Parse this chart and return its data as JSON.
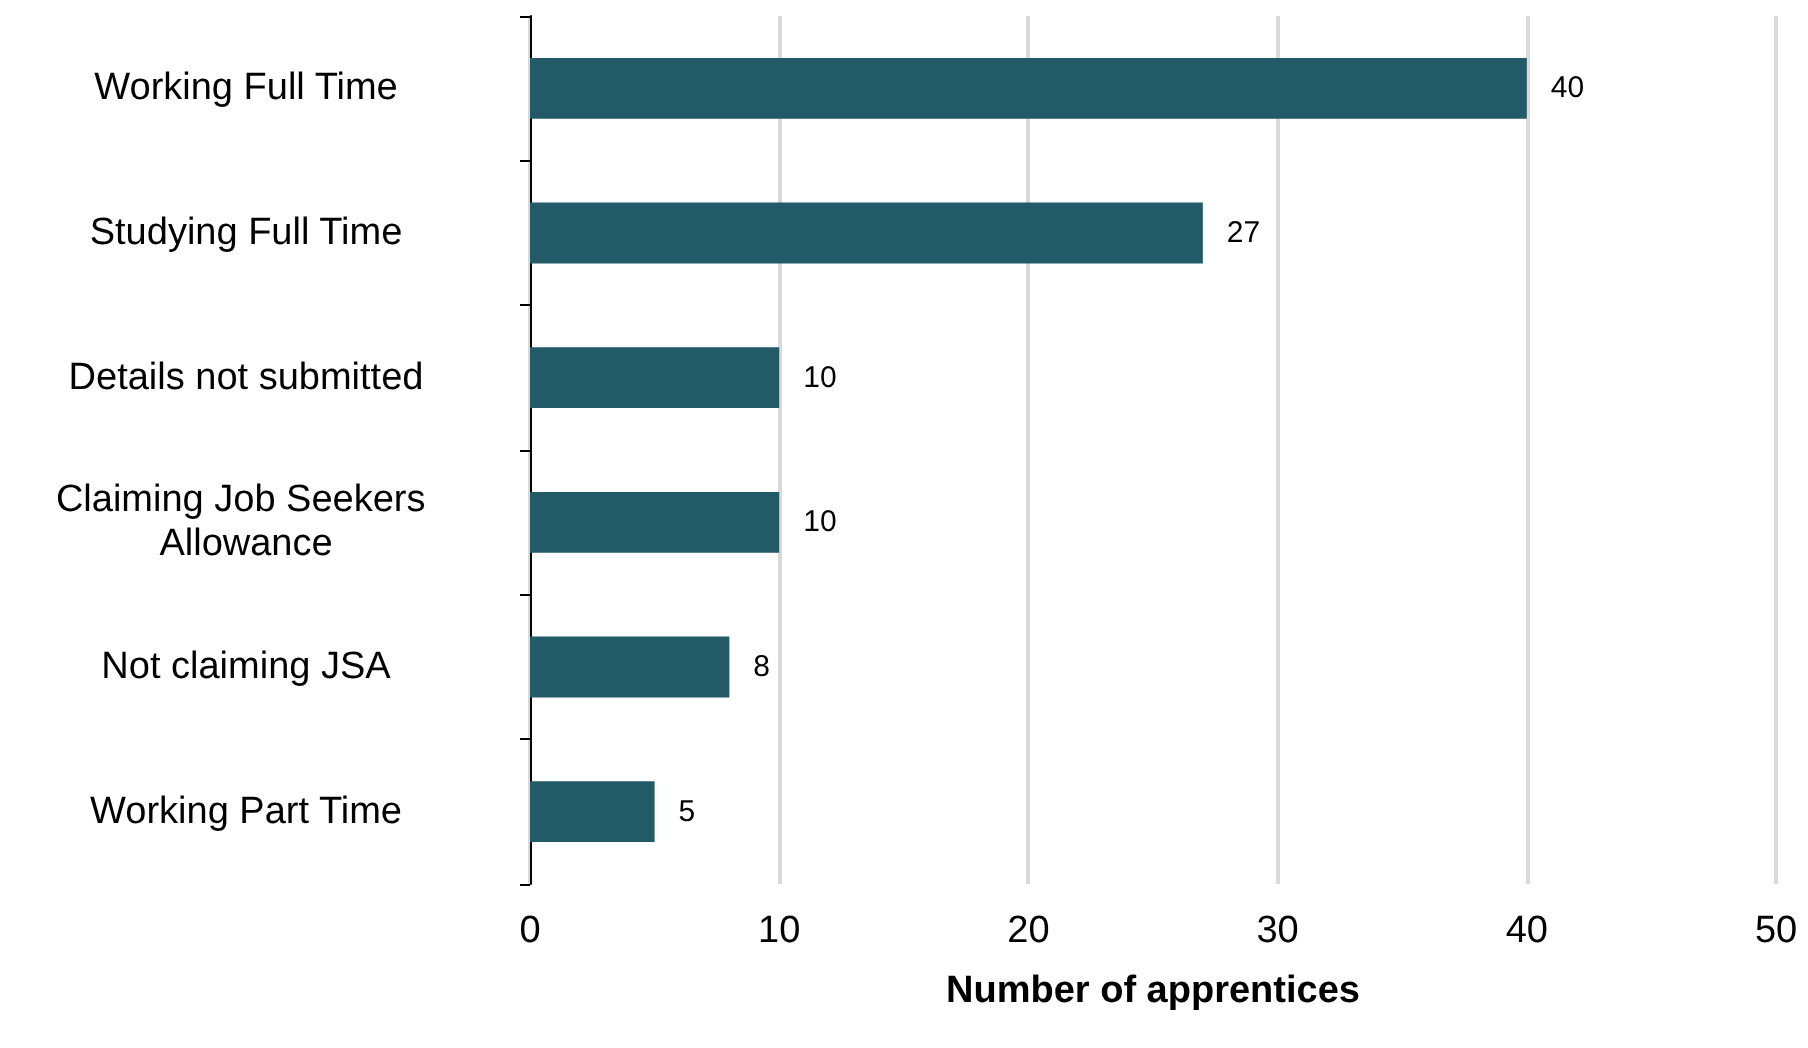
{
  "chart_data": {
    "type": "bar",
    "orientation": "horizontal",
    "xlabel": "Number of apprentices",
    "categories": [
      "Working Full Time",
      "Studying Full Time",
      "Details not submitted",
      "Claiming Job Seekers Allowance",
      "Not claiming JSA",
      "Working Part Time"
    ],
    "values": [
      40,
      27,
      10,
      10,
      8,
      5
    ],
    "color": "#225a68",
    "xlim": [
      0,
      50
    ],
    "xticks": [
      0,
      10,
      20,
      30,
      40,
      50
    ],
    "grid": "x",
    "data_labels": true
  }
}
